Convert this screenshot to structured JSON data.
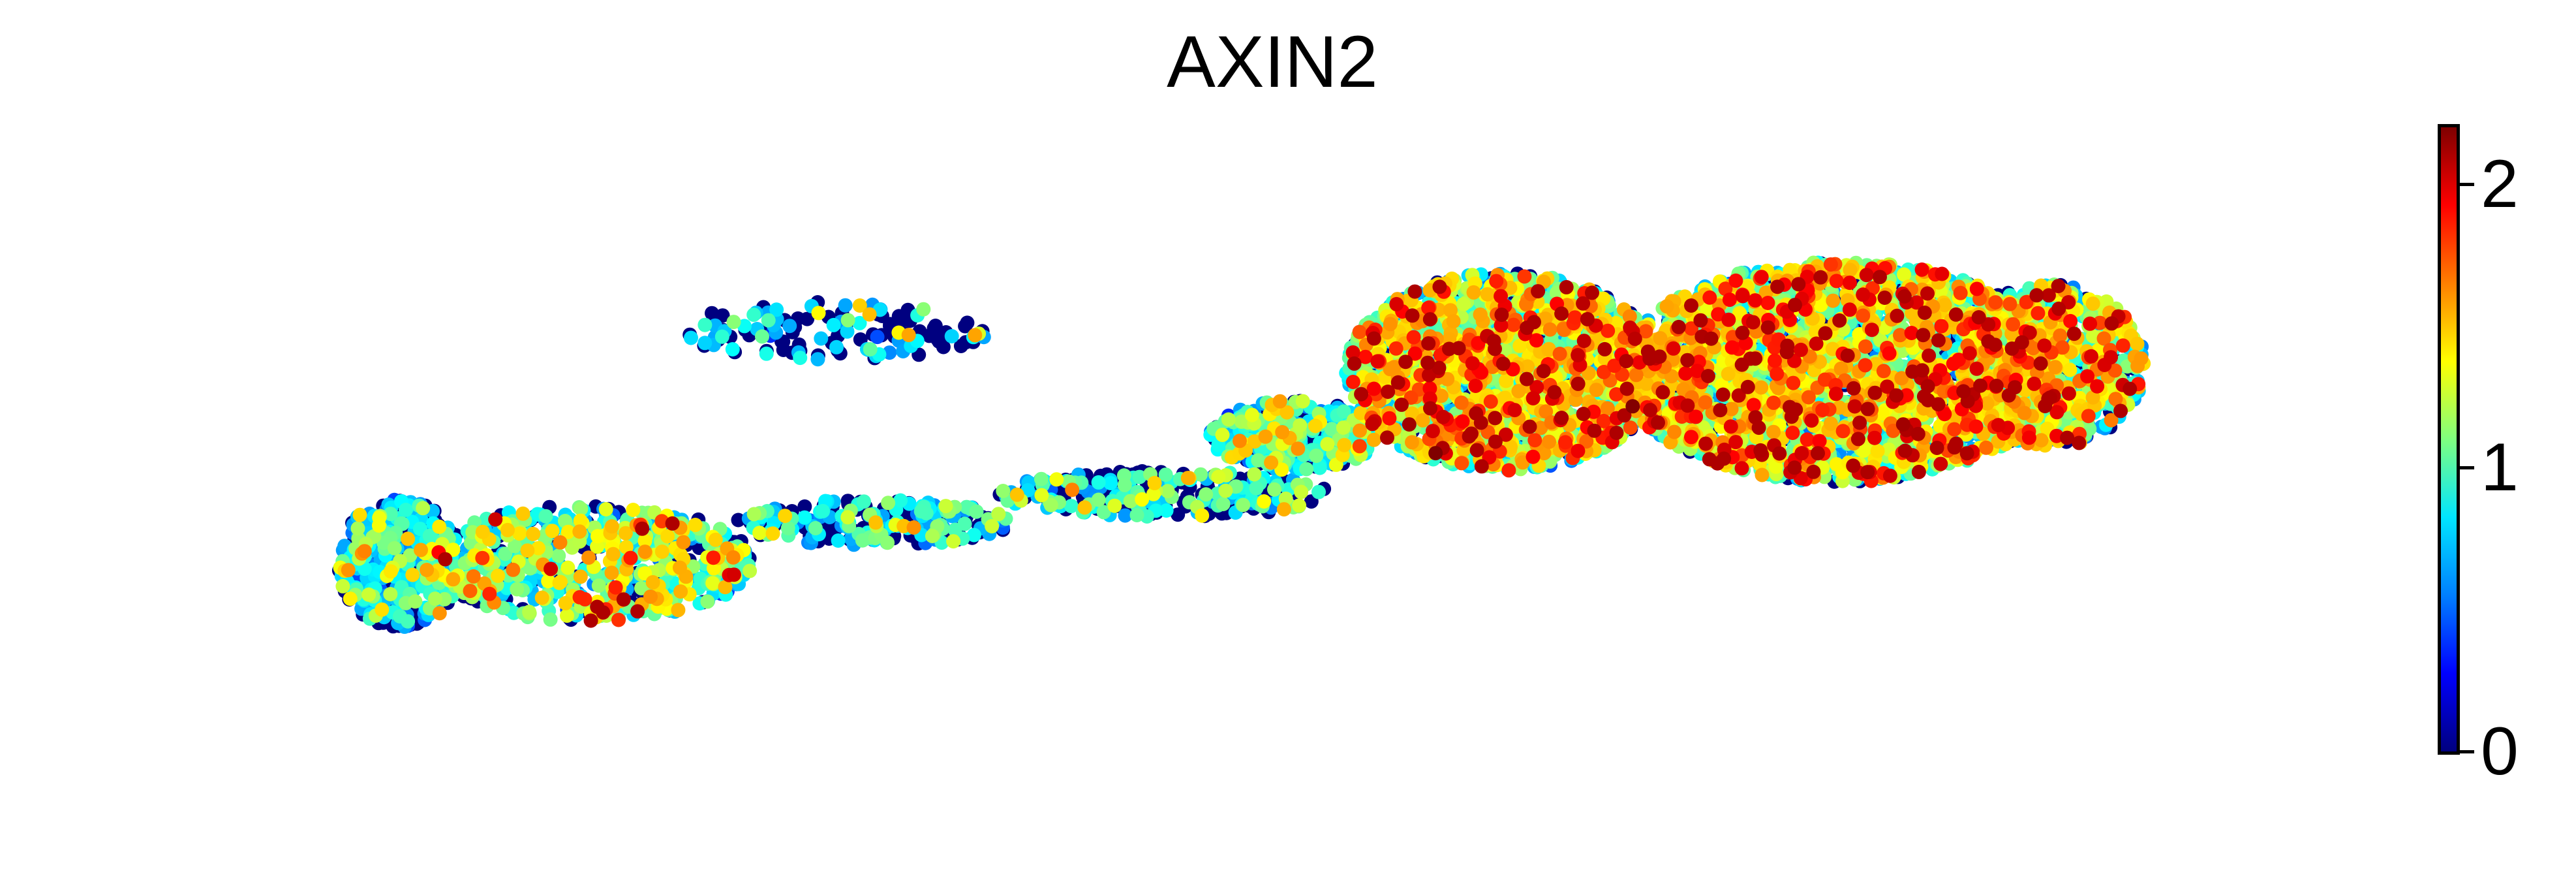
{
  "chart_data": {
    "type": "scatter",
    "title": "AXIN2",
    "xlabel": "",
    "ylabel": "",
    "grid": false,
    "legend": "none",
    "colorbar": {
      "placement": "right",
      "colormap": "jet",
      "range": [
        0,
        2.2
      ],
      "ticks": [
        0,
        1,
        2
      ],
      "tick_labels": [
        "0",
        "1",
        "2"
      ],
      "colors": [
        "#00007f",
        "#0000ff",
        "#007fff",
        "#00e5ff",
        "#7fff7f",
        "#ffff00",
        "#ff7f00",
        "#ff0000",
        "#7f0000"
      ]
    },
    "xlim": [
      0,
      100
    ],
    "ylim": [
      0,
      100
    ],
    "expression_scale_note_colors": {
      "low": "#00007f",
      "mid": "#7fff7f",
      "high": "#7f0000"
    },
    "regions": [
      {
        "cx": 8.5,
        "cy": 30,
        "rx": 3.0,
        "ry": 11,
        "n": 420,
        "dist": [
          0.35,
          0.45,
          0.15,
          0.05,
          0.0
        ],
        "mean": 0.72
      },
      {
        "cx": 17.5,
        "cy": 30,
        "rx": 8.0,
        "ry": 10,
        "n": 650,
        "dist": [
          0.2,
          0.25,
          0.3,
          0.2,
          0.05
        ],
        "mean": 1.05
      },
      {
        "cx": 31,
        "cy": 37,
        "rx": 6.5,
        "ry": 4,
        "n": 230,
        "dist": [
          0.4,
          0.3,
          0.25,
          0.05,
          0.0
        ],
        "mean": 0.7
      },
      {
        "cx": 45,
        "cy": 42,
        "rx": 8.0,
        "ry": 4,
        "n": 300,
        "dist": [
          0.45,
          0.3,
          0.2,
          0.05,
          0.0
        ],
        "mean": 0.68
      },
      {
        "cx": 51,
        "cy": 52,
        "rx": 4.0,
        "ry": 6,
        "n": 360,
        "dist": [
          0.3,
          0.35,
          0.25,
          0.1,
          0.0
        ],
        "mean": 0.8
      },
      {
        "cx": 61,
        "cy": 63,
        "rx": 7.5,
        "ry": 17,
        "n": 2100,
        "dist": [
          0.12,
          0.25,
          0.3,
          0.23,
          0.1
        ],
        "mean": 1.18
      },
      {
        "cx": 77,
        "cy": 63,
        "rx": 10.5,
        "ry": 19,
        "n": 2900,
        "dist": [
          0.12,
          0.22,
          0.3,
          0.26,
          0.1
        ],
        "mean": 1.22
      },
      {
        "cx": 87,
        "cy": 64,
        "rx": 4.5,
        "ry": 14,
        "n": 850,
        "dist": [
          0.18,
          0.25,
          0.27,
          0.22,
          0.08
        ],
        "mean": 1.12
      },
      {
        "cx": 29,
        "cy": 70,
        "rx": 7.5,
        "ry": 5,
        "n": 130,
        "dist": [
          0.55,
          0.35,
          0.08,
          0.02,
          0.0
        ],
        "mean": 0.5
      }
    ]
  }
}
